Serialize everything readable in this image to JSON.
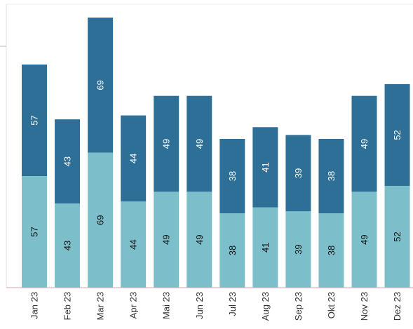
{
  "chart_data": {
    "type": "bar",
    "stacked": true,
    "categories": [
      "Jan 23",
      "Feb 23",
      "Mar 23",
      "Apr 23",
      "Mai 23",
      "Jun 23",
      "Jul 23",
      "Aug 23",
      "Sep 23",
      "Okt 23",
      "Nov 23",
      "Dez 23"
    ],
    "series": [
      {
        "values": [
          57,
          43,
          69,
          44,
          49,
          49,
          38,
          41,
          39,
          38,
          49,
          52
        ],
        "color": "#7cbfca"
      },
      {
        "values": [
          57,
          43,
          69,
          44,
          49,
          49,
          38,
          41,
          39,
          38,
          49,
          52
        ],
        "color": "#2d6f97"
      }
    ],
    "ylim": [
      0,
      147
    ],
    "grid": false,
    "legend": "none",
    "label_colors": {
      "bottom": "#111111",
      "top": "#ffffff"
    },
    "tick_label_color": "#333333",
    "axis_color": "#d9a0a8"
  }
}
